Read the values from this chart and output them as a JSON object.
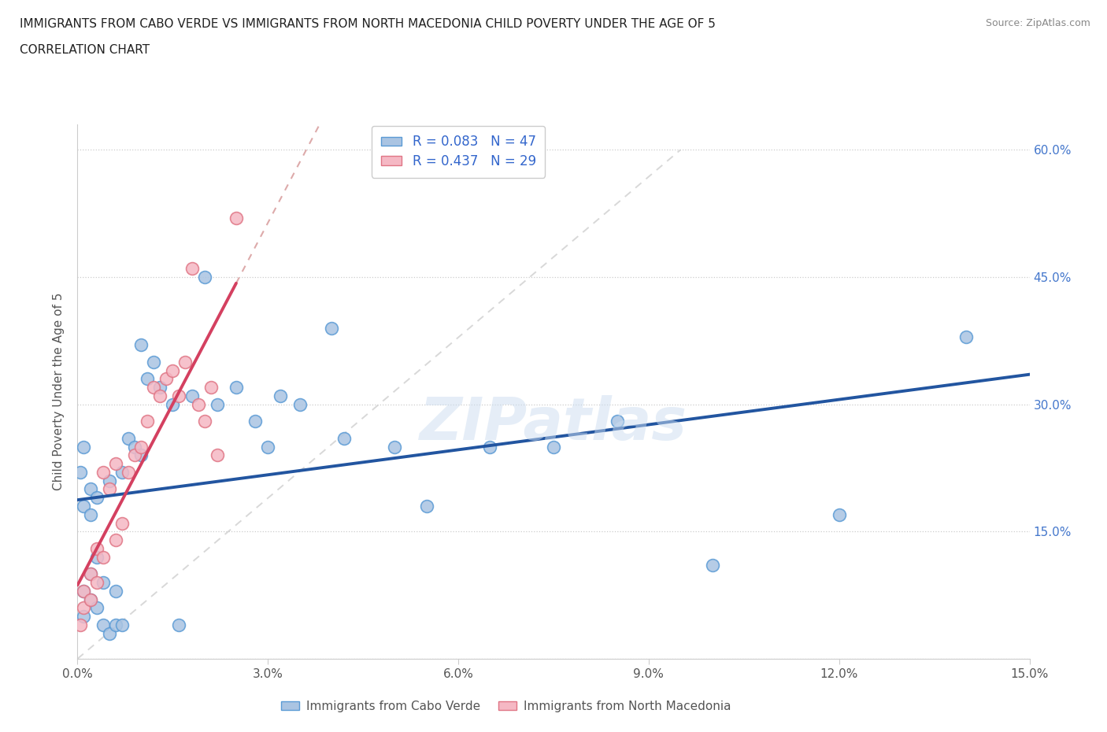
{
  "title_line1": "IMMIGRANTS FROM CABO VERDE VS IMMIGRANTS FROM NORTH MACEDONIA CHILD POVERTY UNDER THE AGE OF 5",
  "title_line2": "CORRELATION CHART",
  "source_text": "Source: ZipAtlas.com",
  "ylabel": "Child Poverty Under the Age of 5",
  "xlim": [
    0.0,
    0.15
  ],
  "ylim": [
    0.0,
    0.63
  ],
  "cabo_r": 0.083,
  "cabo_n": 47,
  "mac_r": 0.437,
  "mac_n": 29,
  "cabo_verde_color": "#aac4e2",
  "cabo_verde_edge": "#5b9bd5",
  "north_mac_color": "#f5b8c4",
  "north_mac_edge": "#e07585",
  "trend_blue_color": "#2255a0",
  "trend_pink_color": "#d44060",
  "trend_gray_color": "#c8c8c8",
  "watermark": "ZIPatlas",
  "cabo_verde_x": [
    0.0005,
    0.001,
    0.001,
    0.001,
    0.001,
    0.002,
    0.002,
    0.002,
    0.002,
    0.003,
    0.003,
    0.003,
    0.004,
    0.004,
    0.005,
    0.005,
    0.006,
    0.006,
    0.007,
    0.007,
    0.008,
    0.009,
    0.01,
    0.01,
    0.011,
    0.012,
    0.013,
    0.015,
    0.016,
    0.018,
    0.02,
    0.022,
    0.025,
    0.028,
    0.03,
    0.032,
    0.035,
    0.04,
    0.042,
    0.05,
    0.055,
    0.065,
    0.075,
    0.085,
    0.1,
    0.12,
    0.14
  ],
  "cabo_verde_y": [
    0.22,
    0.25,
    0.08,
    0.18,
    0.05,
    0.2,
    0.07,
    0.17,
    0.1,
    0.06,
    0.12,
    0.19,
    0.09,
    0.04,
    0.03,
    0.21,
    0.04,
    0.08,
    0.04,
    0.22,
    0.26,
    0.25,
    0.24,
    0.37,
    0.33,
    0.35,
    0.32,
    0.3,
    0.04,
    0.31,
    0.45,
    0.3,
    0.32,
    0.28,
    0.25,
    0.31,
    0.3,
    0.39,
    0.26,
    0.25,
    0.18,
    0.25,
    0.25,
    0.28,
    0.11,
    0.17,
    0.38
  ],
  "north_mac_x": [
    0.0005,
    0.001,
    0.001,
    0.002,
    0.002,
    0.003,
    0.003,
    0.004,
    0.004,
    0.005,
    0.006,
    0.006,
    0.007,
    0.008,
    0.009,
    0.01,
    0.011,
    0.012,
    0.013,
    0.014,
    0.015,
    0.016,
    0.017,
    0.018,
    0.019,
    0.02,
    0.021,
    0.022,
    0.025
  ],
  "north_mac_y": [
    0.04,
    0.06,
    0.08,
    0.07,
    0.1,
    0.09,
    0.13,
    0.12,
    0.22,
    0.2,
    0.23,
    0.14,
    0.16,
    0.22,
    0.24,
    0.25,
    0.28,
    0.32,
    0.31,
    0.33,
    0.34,
    0.31,
    0.35,
    0.46,
    0.3,
    0.28,
    0.32,
    0.24,
    0.52
  ]
}
